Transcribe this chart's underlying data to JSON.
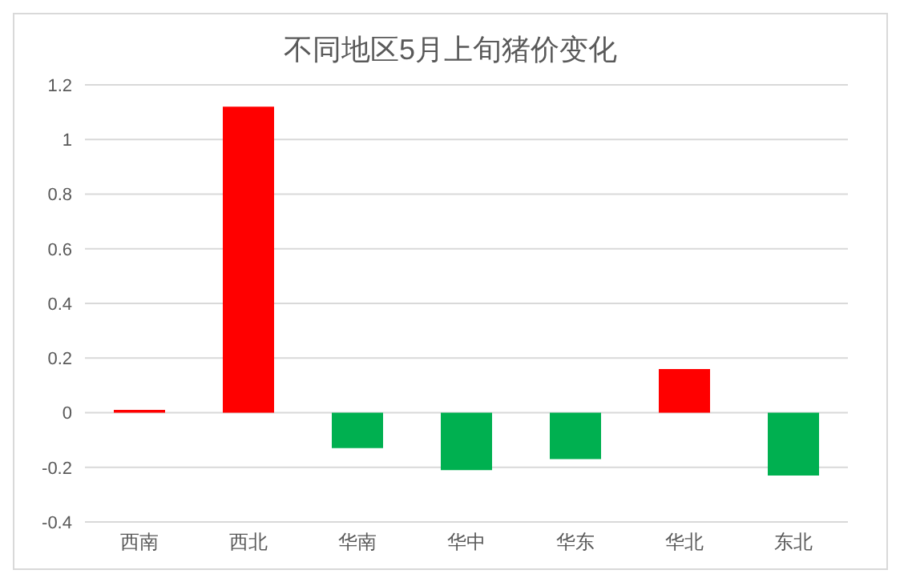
{
  "chart_data": {
    "type": "bar",
    "title": "不同地区5月上旬猪价变化",
    "categories": [
      "西南",
      "西北",
      "华南",
      "华中",
      "华东",
      "华北",
      "东北"
    ],
    "values": [
      0.01,
      1.12,
      -0.13,
      -0.21,
      -0.17,
      0.16,
      -0.23
    ],
    "colors": [
      "#ff0000",
      "#ff0000",
      "#00b050",
      "#00b050",
      "#00b050",
      "#ff0000",
      "#00b050"
    ],
    "ylim": [
      -0.4,
      1.2
    ],
    "yticks": [
      -0.4,
      -0.2,
      0,
      0.2,
      0.4,
      0.6,
      0.8,
      1,
      1.2
    ],
    "grid": "y",
    "legend": false
  }
}
